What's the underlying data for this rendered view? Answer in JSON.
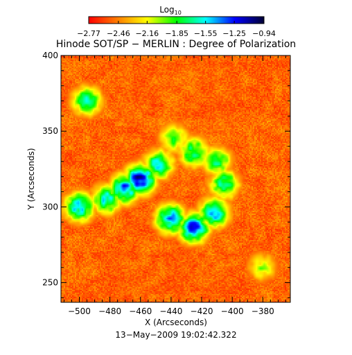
{
  "chart_data": {
    "type": "heatmap",
    "title": "Hinode SOT/SP − MERLIN : Degree of Polarization",
    "footer": "13−May−2009 19:02:42.322",
    "xlabel": "X (Arcseconds)",
    "ylabel": "Y (Arcseconds)",
    "xlim": [
      -512,
      -362
    ],
    "ylim": [
      237,
      400
    ],
    "x_ticks": [
      -500,
      -480,
      -460,
      -440,
      -420,
      -400,
      -380
    ],
    "x_tick_labels": [
      "−500",
      "−480",
      "−460",
      "−440",
      "−420",
      "−400",
      "−380"
    ],
    "y_ticks": [
      250,
      300,
      350,
      400
    ],
    "y_tick_labels": [
      "250",
      "300",
      "350",
      "400"
    ],
    "colorbar": {
      "title_base": "Log",
      "title_sub": "10",
      "range": [
        -2.77,
        -0.94
      ],
      "tick_values": [
        -2.77,
        -2.46,
        -2.16,
        -1.85,
        -1.55,
        -1.25,
        -0.94
      ],
      "tick_labels": [
        "−2.77",
        "−2.46",
        "−2.16",
        "−1.85",
        "−1.55",
        "−1.25",
        "−0.94"
      ],
      "colormap": [
        "#ff0000",
        "#ff7f00",
        "#ffff00",
        "#00ff00",
        "#00ffff",
        "#0000ff",
        "#000033"
      ]
    },
    "features": [
      {
        "x": -460,
        "y": 318,
        "value": -1.0
      },
      {
        "x": -470,
        "y": 312,
        "value": -1.3
      },
      {
        "x": -482,
        "y": 305,
        "value": -1.5
      },
      {
        "x": -500,
        "y": 300,
        "value": -1.4
      },
      {
        "x": -448,
        "y": 328,
        "value": -1.5
      },
      {
        "x": -438,
        "y": 345,
        "value": -1.85
      },
      {
        "x": -425,
        "y": 336,
        "value": -1.6
      },
      {
        "x": -410,
        "y": 330,
        "value": -1.7
      },
      {
        "x": -440,
        "y": 292,
        "value": -1.3
      },
      {
        "x": -425,
        "y": 286,
        "value": -1.2
      },
      {
        "x": -412,
        "y": 296,
        "value": -1.4
      },
      {
        "x": -405,
        "y": 315,
        "value": -1.6
      },
      {
        "x": -495,
        "y": 370,
        "value": -1.6
      },
      {
        "x": -380,
        "y": 260,
        "value": -2.0
      }
    ]
  }
}
